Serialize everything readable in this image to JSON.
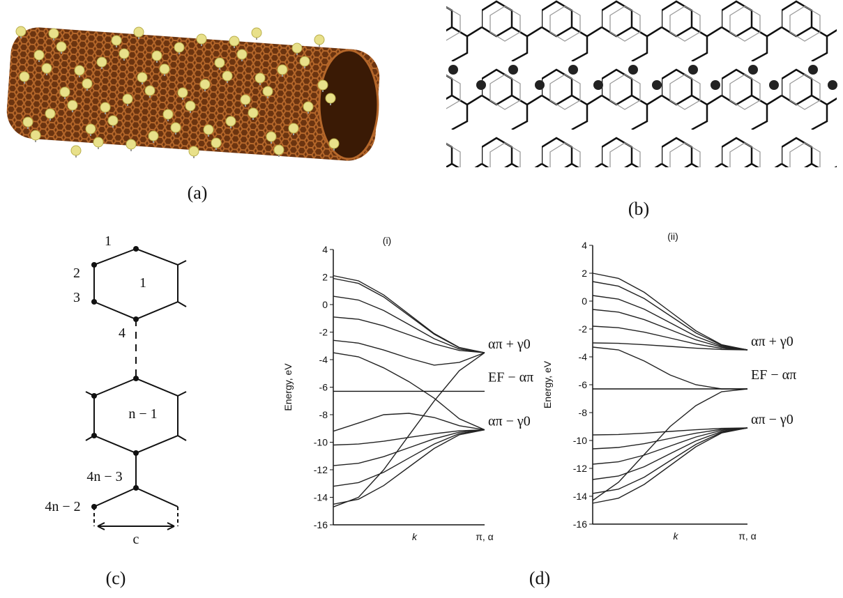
{
  "captions": {
    "a": "(a)",
    "b": "(b)",
    "c": "(c)",
    "d": "(d)"
  },
  "panel_c": {
    "labels": [
      "1",
      "2",
      "3",
      "1",
      "4",
      "n − 1",
      "4n − 3",
      "4n − 2",
      "c"
    ]
  },
  "chart_data": [
    {
      "type": "line",
      "title": "(i)",
      "ylabel": "Energy, eV",
      "xlabel": "k",
      "categories": [
        null,
        null,
        null,
        null,
        null,
        null,
        "π, α"
      ],
      "ylim": [
        -16,
        4
      ],
      "yticks": [
        -16,
        -14,
        -12,
        -10,
        -8,
        -6,
        -4,
        -2,
        0,
        2,
        4
      ],
      "annotations": [
        "απ + γ0",
        "EF − απ",
        "απ − γ0"
      ],
      "series": [
        {
          "color": "#222",
          "values": [
            2.1,
            1.72,
            0.7,
            -0.7,
            -2.1,
            -3.12,
            -3.5
          ]
        },
        {
          "color": "#222",
          "values": [
            1.9,
            1.54,
            0.55,
            -0.8,
            -2.15,
            -3.14,
            -3.5
          ]
        },
        {
          "color": "#222",
          "values": [
            0.6,
            0.33,
            -0.43,
            -1.45,
            -2.48,
            -3.23,
            -3.5
          ]
        },
        {
          "color": "#222",
          "values": [
            -0.9,
            -1.07,
            -1.55,
            -2.2,
            -2.85,
            -3.33,
            -3.5
          ]
        },
        {
          "color": "#222",
          "values": [
            -2.6,
            -2.8,
            -3.3,
            -3.9,
            -4.4,
            -4.2,
            -3.5
          ]
        },
        {
          "color": "#222",
          "values": [
            -3.5,
            -3.8,
            -4.6,
            -5.6,
            -6.8,
            -8.3,
            -9.1
          ]
        },
        {
          "color": "#222",
          "values": [
            -14.7,
            -14.0,
            -12.0,
            -9.5,
            -7.0,
            -4.8,
            -3.5
          ]
        },
        {
          "color": "#222",
          "values": [
            -9.2,
            -8.6,
            -8.0,
            -7.9,
            -8.2,
            -8.8,
            -9.1
          ]
        },
        {
          "color": "#222",
          "values": [
            -10.2,
            -10.13,
            -9.93,
            -9.65,
            -9.38,
            -9.17,
            -9.1
          ]
        },
        {
          "color": "#222",
          "values": [
            -11.7,
            -11.53,
            -11.05,
            -10.4,
            -9.75,
            -9.27,
            -9.1
          ]
        },
        {
          "color": "#222",
          "values": [
            -13.2,
            -12.93,
            -12.18,
            -11.15,
            -10.13,
            -9.37,
            -9.1
          ]
        },
        {
          "color": "#222",
          "values": [
            -14.5,
            -14.14,
            -13.15,
            -11.8,
            -10.45,
            -9.46,
            -9.1
          ]
        },
        {
          "color": "#111",
          "values": [
            -6.3,
            -6.3,
            -6.3,
            -6.3,
            -6.3,
            -6.3,
            -6.3
          ]
        }
      ]
    },
    {
      "type": "line",
      "title": "(ii)",
      "ylabel": "Energy, eV",
      "xlabel": "k",
      "categories": [
        null,
        null,
        null,
        null,
        null,
        null,
        "π, α"
      ],
      "ylim": [
        -16,
        4
      ],
      "yticks": [
        -16,
        -14,
        -12,
        -10,
        -8,
        -6,
        -4,
        -2,
        0,
        2,
        4
      ],
      "annotations": [
        "απ + γ0",
        "EF − απ",
        "απ − γ0"
      ],
      "series": [
        {
          "color": "#222",
          "values": [
            2.0,
            1.63,
            0.63,
            -0.75,
            -2.13,
            -3.13,
            -3.5
          ]
        },
        {
          "color": "#222",
          "values": [
            1.4,
            1.07,
            0.18,
            -1.05,
            -2.28,
            -3.17,
            -3.5
          ]
        },
        {
          "color": "#222",
          "values": [
            0.4,
            0.14,
            -0.58,
            -1.55,
            -2.53,
            -3.24,
            -3.5
          ]
        },
        {
          "color": "#222",
          "values": [
            -0.6,
            -0.79,
            -1.33,
            -2.05,
            -2.78,
            -3.31,
            -3.5
          ]
        },
        {
          "color": "#222",
          "values": [
            -1.8,
            -1.91,
            -2.23,
            -2.65,
            -3.08,
            -3.39,
            -3.5
          ]
        },
        {
          "color": "#222",
          "values": [
            -3.0,
            -3.03,
            -3.13,
            -3.25,
            -3.38,
            -3.47,
            -3.5
          ]
        },
        {
          "color": "#222",
          "values": [
            -3.3,
            -3.5,
            -4.3,
            -5.3,
            -6.0,
            -6.3,
            -6.3
          ]
        },
        {
          "color": "#222",
          "values": [
            -14.3,
            -13.0,
            -11.0,
            -9.0,
            -7.5,
            -6.5,
            -6.3
          ]
        },
        {
          "color": "#222",
          "values": [
            -9.6,
            -9.57,
            -9.48,
            -9.35,
            -9.23,
            -9.13,
            -9.1
          ]
        },
        {
          "color": "#222",
          "values": [
            -10.6,
            -10.5,
            -10.23,
            -9.85,
            -9.48,
            -9.2,
            -9.1
          ]
        },
        {
          "color": "#222",
          "values": [
            -11.7,
            -11.53,
            -11.05,
            -10.4,
            -9.75,
            -9.27,
            -9.1
          ]
        },
        {
          "color": "#222",
          "values": [
            -12.8,
            -12.55,
            -11.88,
            -10.95,
            -10.03,
            -9.35,
            -9.1
          ]
        },
        {
          "color": "#222",
          "values": [
            -13.8,
            -13.49,
            -12.63,
            -11.45,
            -10.28,
            -9.41,
            -9.1
          ]
        },
        {
          "color": "#222",
          "values": [
            -14.5,
            -14.14,
            -13.15,
            -11.8,
            -10.45,
            -9.46,
            -9.1
          ]
        },
        {
          "color": "#111",
          "values": [
            -6.3,
            -6.3,
            -6.3,
            -6.3,
            -6.3,
            -6.3,
            -6.3
          ]
        }
      ]
    }
  ]
}
